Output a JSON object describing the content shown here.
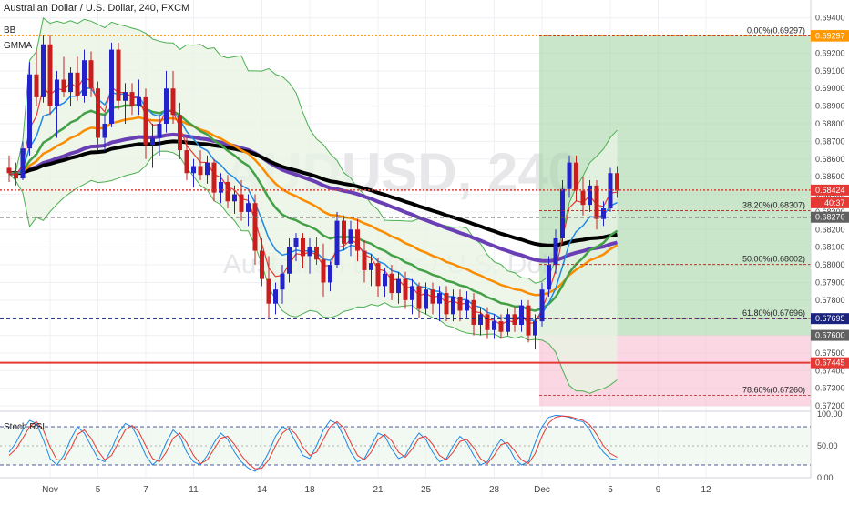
{
  "header": {
    "title": "Australian Dollar / U.S. Dollar, 240, FXCM",
    "indicators": [
      "BB",
      "GMMA"
    ]
  },
  "watermark": {
    "symbol": "AUDUSD, 240",
    "name": "Australian Dollar / U.S. Dollar"
  },
  "countdown": "40:37",
  "stoch_label": "Stoch RSI",
  "colors": {
    "up": "#2323c8",
    "down": "#c81e1e",
    "bb_fill": "#e8f4e4",
    "bb_line": "#4caf50",
    "ema_fast_red": "#e53935",
    "ema_blue": "#1e88e5",
    "ema_green": "#43a047",
    "ema_orange": "#fb8c00",
    "ema_purple": "#6a3fb5",
    "ema_black": "#000000",
    "profit_zone": "#a5d6a7",
    "loss_zone": "#f8bbd0",
    "fib_line": "#b71c1c",
    "orange_level": "#ff9800",
    "red_level": "#e53935",
    "blue_level": "#1a237e"
  },
  "chart_data": [
    {
      "type": "candlestick",
      "ylim": [
        0.6718,
        0.6945
      ],
      "y_ticks": [
        "0.69400",
        "0.69300",
        "0.69200",
        "0.69100",
        "0.69000",
        "0.68900",
        "0.68800",
        "0.68700",
        "0.68600",
        "0.68500",
        "0.68400",
        "0.68300",
        "0.68200",
        "0.68100",
        "0.68000",
        "0.67900",
        "0.67800",
        "0.67700",
        "0.67600",
        "0.67500",
        "0.67400",
        "0.67300",
        "0.67200"
      ],
      "x_ticks": [
        {
          "label": "Nov",
          "i": 6
        },
        {
          "label": "5",
          "i": 13
        },
        {
          "label": "7",
          "i": 20
        },
        {
          "label": "11",
          "i": 27
        },
        {
          "label": "14",
          "i": 37
        },
        {
          "label": "18",
          "i": 44
        },
        {
          "label": "21",
          "i": 54
        },
        {
          "label": "25",
          "i": 61
        },
        {
          "label": "28",
          "i": 71
        },
        {
          "label": "Dec",
          "i": 78
        },
        {
          "label": "5",
          "i": 88
        },
        {
          "label": "9",
          "i": 95
        },
        {
          "label": "12",
          "i": 102
        }
      ],
      "price_labels": [
        {
          "value": 0.693,
          "text": "0.69300",
          "color": "#ff9800"
        },
        {
          "value": 0.69297,
          "text": "0.69297",
          "color": "#ff9800"
        },
        {
          "value": 0.68424,
          "text": "0.68424",
          "color": "#e53935"
        },
        {
          "value": 0.6827,
          "text": "0.68270",
          "color": "#616161"
        },
        {
          "value": 0.67695,
          "text": "0.67695",
          "color": "#1a237e"
        },
        {
          "value": 0.676,
          "text": "0.67600",
          "color": "#616161"
        },
        {
          "value": 0.67445,
          "text": "0.67445",
          "color": "#e53935"
        }
      ],
      "fib_levels": [
        {
          "text": "0.00%(0.69297)",
          "value": 0.69297
        },
        {
          "text": "38.20%(0.68307)",
          "value": 0.68307
        },
        {
          "text": "50.00%(0.68002)",
          "value": 0.68002
        },
        {
          "text": "61.80%(0.67696)",
          "value": 0.67696
        },
        {
          "text": "78.60%(0.67260)",
          "value": 0.6726
        }
      ],
      "horizontal_levels": [
        {
          "value": 0.693,
          "style": "dotted",
          "color": "#ff9800"
        },
        {
          "value": 0.68424,
          "style": "dotted",
          "color": "#e53935"
        },
        {
          "value": 0.6827,
          "style": "dashed",
          "color": "#616161"
        },
        {
          "value": 0.67695,
          "style": "dashed",
          "color": "#1a237e"
        },
        {
          "value": 0.67445,
          "style": "solid",
          "color": "#e53935"
        }
      ],
      "position": {
        "start_i": 78,
        "entry": 0.676,
        "target": 0.69297,
        "stop": 0.672
      },
      "candles": [
        [
          0.6855,
          0.6862,
          0.6847,
          0.6852
        ],
        [
          0.6852,
          0.6858,
          0.6845,
          0.6849
        ],
        [
          0.6849,
          0.687,
          0.6848,
          0.6866
        ],
        [
          0.6866,
          0.6915,
          0.6862,
          0.6908
        ],
        [
          0.6908,
          0.6922,
          0.689,
          0.6895
        ],
        [
          0.6895,
          0.693,
          0.6892,
          0.6925
        ],
        [
          0.6925,
          0.693,
          0.6885,
          0.689
        ],
        [
          0.689,
          0.691,
          0.6872,
          0.6905
        ],
        [
          0.6905,
          0.6918,
          0.6895,
          0.6898
        ],
        [
          0.6898,
          0.6912,
          0.689,
          0.6909
        ],
        [
          0.6909,
          0.6918,
          0.6893,
          0.6896
        ],
        [
          0.6896,
          0.6922,
          0.6892,
          0.6916
        ],
        [
          0.6916,
          0.6921,
          0.6895,
          0.69
        ],
        [
          0.69,
          0.6904,
          0.6865,
          0.6872
        ],
        [
          0.6872,
          0.6885,
          0.6865,
          0.688
        ],
        [
          0.688,
          0.6926,
          0.6878,
          0.6922
        ],
        [
          0.6922,
          0.6926,
          0.6888,
          0.6893
        ],
        [
          0.6893,
          0.6903,
          0.688,
          0.6898
        ],
        [
          0.6898,
          0.6903,
          0.6885,
          0.689
        ],
        [
          0.689,
          0.6905,
          0.6885,
          0.6895
        ],
        [
          0.6895,
          0.69,
          0.686,
          0.6868
        ],
        [
          0.6868,
          0.688,
          0.6855,
          0.6872
        ],
        [
          0.6872,
          0.6885,
          0.6862,
          0.688
        ],
        [
          0.688,
          0.691,
          0.6875,
          0.69
        ],
        [
          0.69,
          0.691,
          0.688,
          0.6885
        ],
        [
          0.6885,
          0.6892,
          0.686,
          0.6865
        ],
        [
          0.6865,
          0.6872,
          0.6848,
          0.6852
        ],
        [
          0.6852,
          0.686,
          0.6844,
          0.6856
        ],
        [
          0.6856,
          0.6865,
          0.6848,
          0.6851
        ],
        [
          0.6851,
          0.6862,
          0.6846,
          0.6858
        ],
        [
          0.6858,
          0.686,
          0.6836,
          0.6841
        ],
        [
          0.6841,
          0.6852,
          0.6835,
          0.6847
        ],
        [
          0.6847,
          0.6851,
          0.6832,
          0.6836
        ],
        [
          0.6836,
          0.6845,
          0.6829,
          0.684
        ],
        [
          0.684,
          0.6848,
          0.6825,
          0.683
        ],
        [
          0.683,
          0.684,
          0.6822,
          0.6835
        ],
        [
          0.6835,
          0.684,
          0.68,
          0.6808
        ],
        [
          0.6808,
          0.6815,
          0.6788,
          0.6792
        ],
        [
          0.6792,
          0.6805,
          0.677,
          0.6778
        ],
        [
          0.6778,
          0.679,
          0.6772,
          0.6786
        ],
        [
          0.6786,
          0.68,
          0.6778,
          0.6795
        ],
        [
          0.6795,
          0.6815,
          0.679,
          0.681
        ],
        [
          0.681,
          0.6818,
          0.6802,
          0.6815
        ],
        [
          0.6815,
          0.6818,
          0.6798,
          0.6805
        ],
        [
          0.6805,
          0.6815,
          0.6795,
          0.681
        ],
        [
          0.681,
          0.6816,
          0.68,
          0.6803
        ],
        [
          0.6803,
          0.6812,
          0.6782,
          0.679
        ],
        [
          0.679,
          0.6802,
          0.6785,
          0.68
        ],
        [
          0.68,
          0.683,
          0.6798,
          0.6825
        ],
        [
          0.6825,
          0.6828,
          0.6808,
          0.6812
        ],
        [
          0.6812,
          0.6825,
          0.6805,
          0.682
        ],
        [
          0.682,
          0.6826,
          0.6802,
          0.6808
        ],
        [
          0.6808,
          0.6814,
          0.679,
          0.6797
        ],
        [
          0.6797,
          0.6806,
          0.6788,
          0.6801
        ],
        [
          0.6801,
          0.6804,
          0.6782,
          0.6788
        ],
        [
          0.6788,
          0.6798,
          0.6782,
          0.6795
        ],
        [
          0.6795,
          0.68,
          0.678,
          0.6784
        ],
        [
          0.6784,
          0.6796,
          0.6778,
          0.6792
        ],
        [
          0.6792,
          0.6796,
          0.6775,
          0.678
        ],
        [
          0.678,
          0.6792,
          0.6772,
          0.6788
        ],
        [
          0.6788,
          0.679,
          0.677,
          0.6775
        ],
        [
          0.6775,
          0.679,
          0.6772,
          0.6786
        ],
        [
          0.6786,
          0.679,
          0.6772,
          0.6778
        ],
        [
          0.6778,
          0.6788,
          0.6768,
          0.6784
        ],
        [
          0.6784,
          0.6788,
          0.6768,
          0.6772
        ],
        [
          0.6772,
          0.6786,
          0.6768,
          0.6782
        ],
        [
          0.6782,
          0.6786,
          0.6768,
          0.6774
        ],
        [
          0.6774,
          0.6785,
          0.677,
          0.678
        ],
        [
          0.678,
          0.6784,
          0.676,
          0.6766
        ],
        [
          0.6766,
          0.6776,
          0.676,
          0.6772
        ],
        [
          0.6772,
          0.6776,
          0.6758,
          0.6763
        ],
        [
          0.6763,
          0.6772,
          0.6758,
          0.6768
        ],
        [
          0.6768,
          0.6772,
          0.6758,
          0.6762
        ],
        [
          0.6762,
          0.6775,
          0.676,
          0.6772
        ],
        [
          0.6772,
          0.6776,
          0.6762,
          0.6766
        ],
        [
          0.6766,
          0.678,
          0.6762,
          0.6777
        ],
        [
          0.6777,
          0.678,
          0.6756,
          0.676
        ],
        [
          0.676,
          0.6772,
          0.6752,
          0.6768
        ],
        [
          0.6768,
          0.679,
          0.6765,
          0.6786
        ],
        [
          0.6786,
          0.6805,
          0.6782,
          0.68
        ],
        [
          0.68,
          0.682,
          0.6795,
          0.6815
        ],
        [
          0.6815,
          0.6848,
          0.6812,
          0.6843
        ],
        [
          0.6843,
          0.6862,
          0.6838,
          0.6858
        ],
        [
          0.6858,
          0.6862,
          0.6836,
          0.6842
        ],
        [
          0.6842,
          0.685,
          0.6828,
          0.6834
        ],
        [
          0.6834,
          0.6848,
          0.683,
          0.6845
        ],
        [
          0.6845,
          0.6848,
          0.682,
          0.6826
        ],
        [
          0.6826,
          0.6836,
          0.6822,
          0.6832
        ],
        [
          0.6832,
          0.6855,
          0.683,
          0.6852
        ],
        [
          0.6852,
          0.6856,
          0.6838,
          0.6842
        ]
      ]
    },
    {
      "type": "line",
      "title": "Stoch RSI",
      "ylim": [
        0,
        100
      ],
      "y_ticks": [
        "100.00",
        "50.00",
        "0.00"
      ],
      "bands": [
        80,
        20
      ],
      "series": [
        {
          "color": "#1e88e5",
          "values": [
            40,
            55,
            75,
            90,
            85,
            60,
            30,
            20,
            35,
            60,
            80,
            70,
            50,
            30,
            25,
            45,
            70,
            85,
            80,
            60,
            35,
            20,
            30,
            55,
            75,
            65,
            40,
            25,
            20,
            35,
            55,
            70,
            60,
            40,
            25,
            15,
            10,
            20,
            40,
            65,
            80,
            75,
            55,
            35,
            30,
            50,
            75,
            90,
            85,
            65,
            40,
            25,
            30,
            50,
            70,
            65,
            45,
            30,
            35,
            55,
            70,
            60,
            40,
            25,
            30,
            50,
            65,
            55,
            35,
            20,
            25,
            45,
            60,
            50,
            30,
            20,
            25,
            55,
            80,
            95,
            98,
            97,
            95,
            90,
            88,
            75,
            55,
            40,
            30,
            28
          ]
        },
        {
          "color": "#e53935",
          "values": [
            35,
            45,
            62,
            80,
            88,
            75,
            48,
            28,
            28,
            45,
            68,
            75,
            62,
            42,
            28,
            35,
            55,
            75,
            82,
            72,
            50,
            30,
            25,
            40,
            62,
            70,
            55,
            35,
            22,
            28,
            45,
            62,
            65,
            52,
            35,
            22,
            14,
            15,
            28,
            50,
            70,
            78,
            68,
            48,
            35,
            40,
            60,
            80,
            88,
            78,
            55,
            35,
            28,
            40,
            60,
            68,
            58,
            40,
            32,
            45,
            62,
            65,
            52,
            35,
            28,
            40,
            57,
            60,
            47,
            30,
            22,
            35,
            52,
            55,
            42,
            28,
            22,
            38,
            65,
            86,
            95,
            97,
            96,
            93,
            90,
            83,
            68,
            50,
            38,
            32
          ]
        }
      ]
    }
  ]
}
